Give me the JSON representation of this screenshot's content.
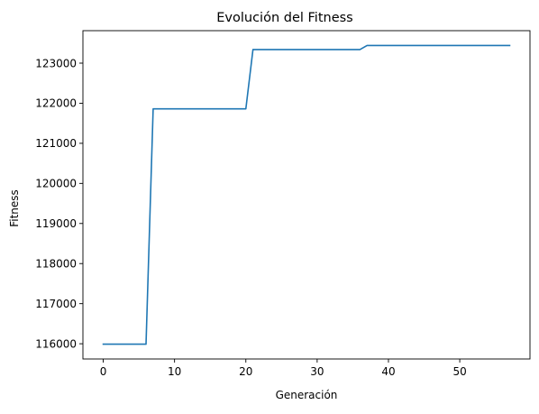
{
  "chart_data": {
    "type": "line",
    "title": "Evolución del Fitness",
    "xlabel": "Generación",
    "ylabel": "Fitness",
    "xlim": [
      -2.85,
      59.85
    ],
    "ylim": [
      115620,
      123810
    ],
    "xticks": [
      0,
      10,
      20,
      30,
      40,
      50
    ],
    "yticks": [
      116000,
      117000,
      118000,
      119000,
      120000,
      121000,
      122000,
      123000
    ],
    "grid": false,
    "legend": "none",
    "series": [
      {
        "color": "#1f77b4",
        "x": [
          0,
          1,
          2,
          3,
          4,
          5,
          6,
          7,
          8,
          9,
          10,
          11,
          12,
          13,
          14,
          15,
          16,
          17,
          18,
          19,
          20,
          21,
          22,
          23,
          24,
          25,
          26,
          27,
          28,
          29,
          30,
          31,
          32,
          33,
          34,
          35,
          36,
          37,
          38,
          39,
          40,
          41,
          42,
          43,
          44,
          45,
          46,
          47,
          48,
          49,
          50,
          51,
          52,
          53,
          54,
          55,
          56,
          57
        ],
        "values": [
          115990,
          115990,
          115990,
          115990,
          115990,
          115990,
          115990,
          121860,
          121860,
          121860,
          121860,
          121860,
          121860,
          121860,
          121860,
          121860,
          121860,
          121860,
          121860,
          121860,
          121860,
          123340,
          123340,
          123340,
          123340,
          123340,
          123340,
          123340,
          123340,
          123340,
          123340,
          123340,
          123340,
          123340,
          123340,
          123340,
          123340,
          123440,
          123440,
          123440,
          123440,
          123440,
          123440,
          123440,
          123440,
          123440,
          123440,
          123440,
          123440,
          123440,
          123440,
          123440,
          123440,
          123440,
          123440,
          123440,
          123440,
          123440
        ]
      }
    ]
  }
}
